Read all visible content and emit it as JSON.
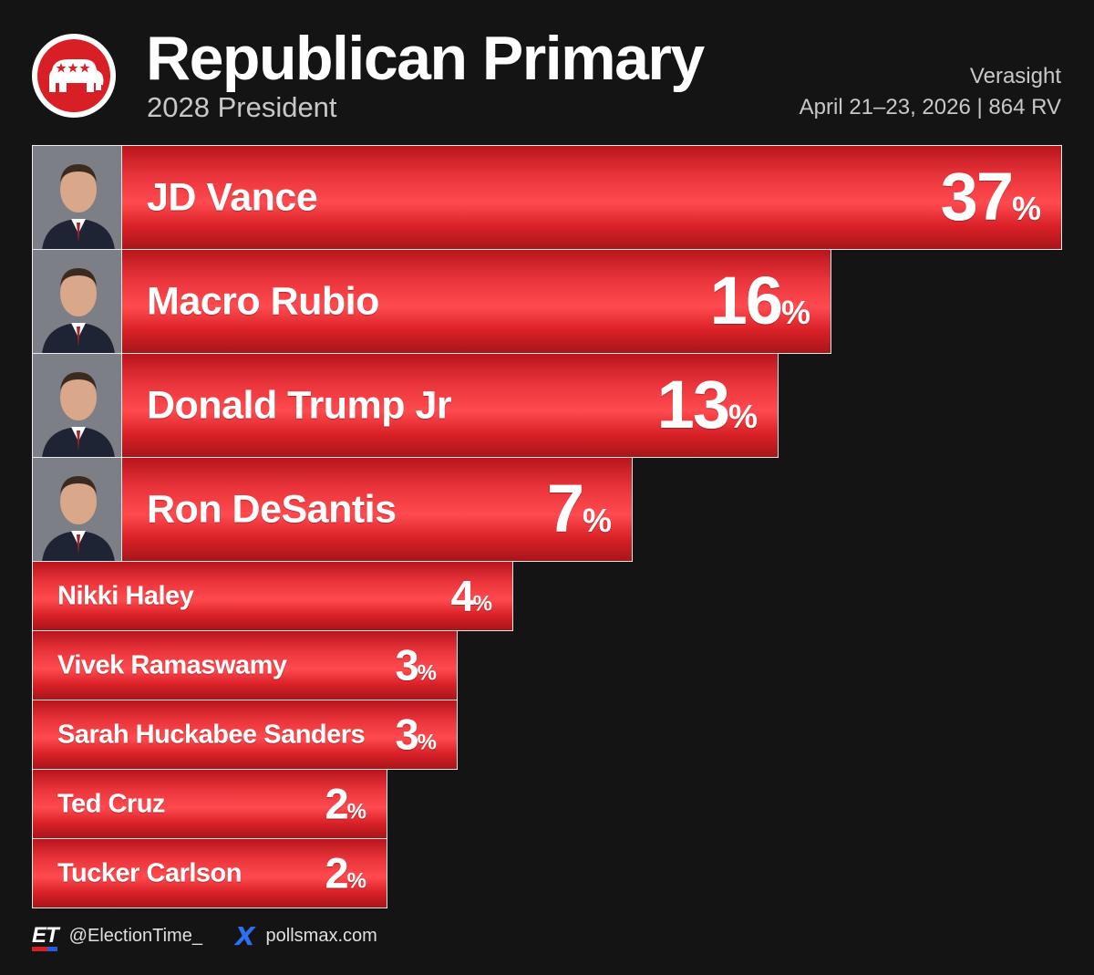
{
  "header": {
    "title": "Republican Primary",
    "subtitle": "2028 President",
    "source": "Verasight",
    "dates": "April 21–23, 2026 | 864 RV"
  },
  "chart_data": {
    "type": "bar",
    "orientation": "horizontal",
    "title": "Republican Primary",
    "subtitle": "2028 President",
    "categories": [
      "JD Vance",
      "Macro Rubio",
      "Donald Trump Jr",
      "Ron DeSantis",
      "Nikki Haley",
      "Vivek Ramaswamy",
      "Sarah Huckabee Sanders",
      "Ted Cruz",
      "Tucker Carlson"
    ],
    "values": [
      37,
      16,
      13,
      7,
      4,
      3,
      3,
      2,
      2
    ],
    "value_suffix": "%",
    "bar_color": "#e8333a",
    "xlim": [
      0,
      37
    ]
  },
  "footer": {
    "handle": "@ElectionTime_",
    "et_logo": "ET",
    "x_icon": "X",
    "site": "pollsmax.com"
  },
  "colors": {
    "background": "#141414",
    "bar": "#e8333a",
    "logo": "#d81f26",
    "x_icon": "#2f6df2"
  }
}
